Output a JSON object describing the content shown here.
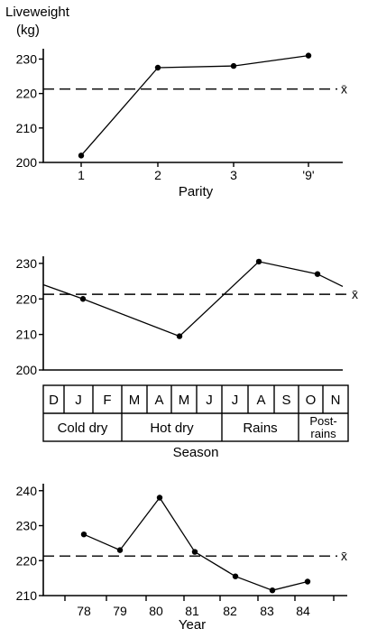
{
  "chart_data": [
    {
      "type": "line",
      "ylabel": "Liveweight (kg)",
      "ylabel_lines": [
        "Liveweight",
        "(kg)"
      ],
      "xlabel": "Parity",
      "categories": [
        "1",
        "2",
        "3",
        "'9'"
      ],
      "values": [
        202,
        227.5,
        228,
        231
      ],
      "yticks": [
        200,
        210,
        220,
        230
      ],
      "ylim": [
        200,
        233
      ],
      "mean": 221.3,
      "mean_label": "x̄"
    },
    {
      "type": "line",
      "xlabel": "Season",
      "months": [
        "D",
        "J",
        "F",
        "M",
        "A",
        "M",
        "J",
        "J",
        "A",
        "S",
        "O",
        "N"
      ],
      "seasons": [
        {
          "label": "Cold dry",
          "lines": [
            "Cold dry"
          ],
          "span": [
            0,
            3
          ]
        },
        {
          "label": "Hot dry",
          "lines": [
            "Hot dry"
          ],
          "span": [
            3,
            7
          ]
        },
        {
          "label": "Rains",
          "lines": [
            "Rains"
          ],
          "span": [
            7,
            10
          ]
        },
        {
          "label": "Post-rains",
          "lines": [
            "Post-",
            "rains"
          ],
          "span": [
            10,
            12
          ]
        }
      ],
      "x": [
        "Dec",
        "Jan",
        "May",
        "Aug",
        "Oct",
        "Nov"
      ],
      "points": [
        {
          "month": "Dec",
          "value": 224,
          "marker": false
        },
        {
          "month": "Jan",
          "value": 220,
          "marker": true
        },
        {
          "month": "May",
          "value": 209.5,
          "marker": true
        },
        {
          "month": "Aug",
          "value": 230.5,
          "marker": true
        },
        {
          "month": "Oct",
          "value": 227,
          "marker": true
        },
        {
          "month": "Nov",
          "value": 223.5,
          "marker": false
        }
      ],
      "yticks": [
        200,
        210,
        220,
        230
      ],
      "ylim": [
        200,
        232
      ],
      "mean": 221.3,
      "mean_label": "x̄"
    },
    {
      "type": "line",
      "xlabel": "Year",
      "categories": [
        "78",
        "79",
        "80",
        "81",
        "82",
        "83",
        "84"
      ],
      "values": [
        227.5,
        223,
        238,
        222.5,
        215.5,
        211.5,
        214
      ],
      "yticks": [
        210,
        220,
        230,
        240
      ],
      "ylim": [
        210,
        242
      ],
      "mean": 221.3,
      "mean_label": "x̄"
    }
  ]
}
